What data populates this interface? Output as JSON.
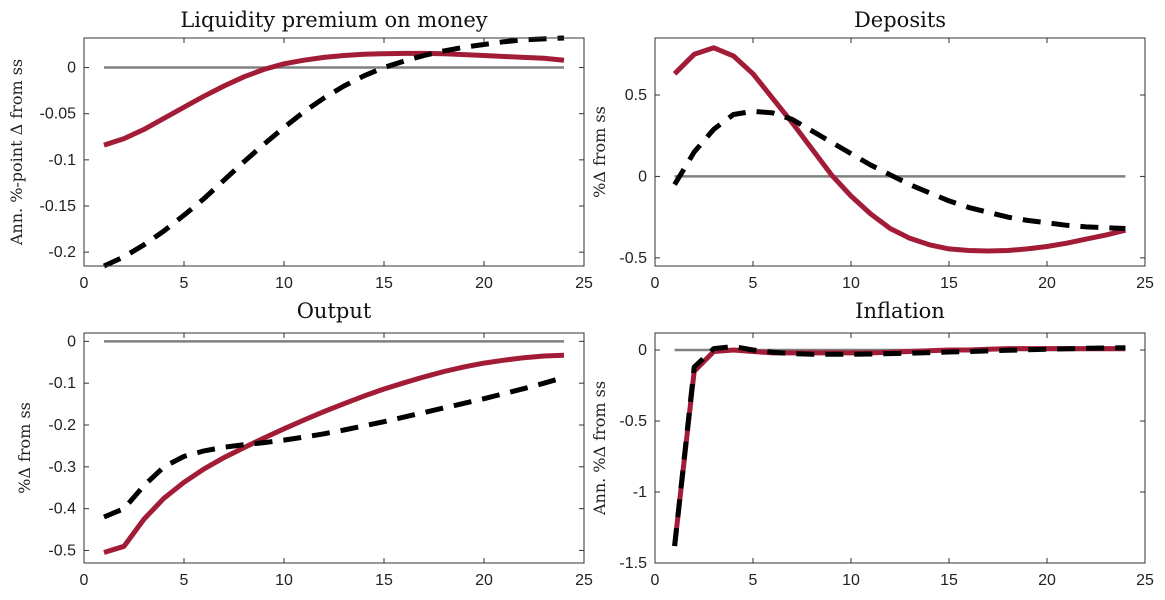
{
  "chart_data": [
    {
      "type": "line",
      "title": "Liquidity premium on money",
      "ylabel": "Ann. %-point Δ from ss",
      "xlim": [
        0,
        25
      ],
      "ylim": [
        -0.215,
        0.032
      ],
      "xticks": [
        0,
        5,
        10,
        15,
        20,
        25
      ],
      "yticks": [
        0,
        -0.05,
        -0.1,
        -0.15,
        -0.2
      ],
      "ytick_labels": [
        "0",
        "-0.05",
        "-0.1",
        "-0.15",
        "-0.2"
      ],
      "grid": false,
      "legend": "none",
      "x": [
        1,
        2,
        3,
        4,
        5,
        6,
        7,
        8,
        9,
        10,
        11,
        12,
        13,
        14,
        15,
        16,
        17,
        18,
        19,
        20,
        21,
        22,
        23,
        24
      ],
      "series": [
        {
          "style": "solid",
          "color": "#a31c37",
          "values": [
            -0.084,
            -0.077,
            -0.067,
            -0.055,
            -0.043,
            -0.031,
            -0.02,
            -0.01,
            -0.002,
            0.004,
            0.008,
            0.011,
            0.013,
            0.0145,
            0.015,
            0.0153,
            0.0153,
            0.015,
            0.014,
            0.013,
            0.012,
            0.011,
            0.01,
            0.008
          ]
        },
        {
          "style": "dashed",
          "color": "#000000",
          "values": [
            -0.215,
            -0.205,
            -0.192,
            -0.177,
            -0.16,
            -0.142,
            -0.122,
            -0.102,
            -0.083,
            -0.065,
            -0.048,
            -0.033,
            -0.02,
            -0.009,
            0.0,
            0.007,
            0.013,
            0.018,
            0.022,
            0.025,
            0.028,
            0.03,
            0.031,
            0.032
          ]
        },
        {
          "style": "zero",
          "color": "#808080",
          "values": [
            0,
            0,
            0,
            0,
            0,
            0,
            0,
            0,
            0,
            0,
            0,
            0,
            0,
            0,
            0,
            0,
            0,
            0,
            0,
            0,
            0,
            0,
            0,
            0
          ]
        }
      ]
    },
    {
      "type": "line",
      "title": "Deposits",
      "ylabel": "%Δ from ss",
      "xlim": [
        0,
        25
      ],
      "ylim": [
        -0.55,
        0.85
      ],
      "xticks": [
        0,
        5,
        10,
        15,
        20,
        25
      ],
      "yticks": [
        0.5,
        0,
        -0.5
      ],
      "ytick_labels": [
        "0.5",
        "0",
        "-0.5"
      ],
      "grid": false,
      "legend": "none",
      "x": [
        1,
        2,
        3,
        4,
        5,
        6,
        7,
        8,
        9,
        10,
        11,
        12,
        13,
        14,
        15,
        16,
        17,
        18,
        19,
        20,
        21,
        22,
        23,
        24
      ],
      "series": [
        {
          "style": "solid",
          "color": "#a31c37",
          "values": [
            0.63,
            0.75,
            0.79,
            0.74,
            0.63,
            0.48,
            0.33,
            0.17,
            0.01,
            -0.12,
            -0.23,
            -0.32,
            -0.38,
            -0.42,
            -0.445,
            -0.455,
            -0.458,
            -0.455,
            -0.445,
            -0.43,
            -0.41,
            -0.385,
            -0.36,
            -0.33
          ]
        },
        {
          "style": "dashed",
          "color": "#000000",
          "values": [
            -0.05,
            0.15,
            0.29,
            0.38,
            0.4,
            0.39,
            0.35,
            0.28,
            0.21,
            0.14,
            0.07,
            0.01,
            -0.05,
            -0.1,
            -0.15,
            -0.19,
            -0.22,
            -0.25,
            -0.27,
            -0.285,
            -0.3,
            -0.31,
            -0.315,
            -0.32
          ]
        },
        {
          "style": "zero",
          "color": "#808080",
          "values": [
            0,
            0,
            0,
            0,
            0,
            0,
            0,
            0,
            0,
            0,
            0,
            0,
            0,
            0,
            0,
            0,
            0,
            0,
            0,
            0,
            0,
            0,
            0,
            0
          ]
        }
      ]
    },
    {
      "type": "line",
      "title": "Output",
      "ylabel": "%Δ from ss",
      "xlim": [
        0,
        25
      ],
      "ylim": [
        -0.53,
        0.02
      ],
      "xticks": [
        0,
        5,
        10,
        15,
        20,
        25
      ],
      "yticks": [
        0,
        -0.1,
        -0.2,
        -0.3,
        -0.4,
        -0.5
      ],
      "ytick_labels": [
        "0",
        "-0.1",
        "-0.2",
        "-0.3",
        "-0.4",
        "-0.5"
      ],
      "grid": false,
      "legend": "none",
      "x": [
        1,
        2,
        3,
        4,
        5,
        6,
        7,
        8,
        9,
        10,
        11,
        12,
        13,
        14,
        15,
        16,
        17,
        18,
        19,
        20,
        21,
        22,
        23,
        24
      ],
      "series": [
        {
          "style": "solid",
          "color": "#a31c37",
          "values": [
            -0.505,
            -0.49,
            -0.425,
            -0.375,
            -0.337,
            -0.305,
            -0.278,
            -0.254,
            -0.231,
            -0.209,
            -0.188,
            -0.168,
            -0.149,
            -0.131,
            -0.114,
            -0.099,
            -0.085,
            -0.072,
            -0.061,
            -0.052,
            -0.045,
            -0.039,
            -0.035,
            -0.033
          ]
        },
        {
          "style": "dashed",
          "color": "#000000",
          "values": [
            -0.42,
            -0.4,
            -0.345,
            -0.3,
            -0.275,
            -0.262,
            -0.253,
            -0.247,
            -0.242,
            -0.236,
            -0.229,
            -0.221,
            -0.212,
            -0.202,
            -0.192,
            -0.181,
            -0.17,
            -0.159,
            -0.148,
            -0.137,
            -0.125,
            -0.113,
            -0.1,
            -0.086
          ]
        },
        {
          "style": "zero",
          "color": "#808080",
          "values": [
            0,
            0,
            0,
            0,
            0,
            0,
            0,
            0,
            0,
            0,
            0,
            0,
            0,
            0,
            0,
            0,
            0,
            0,
            0,
            0,
            0,
            0,
            0,
            0
          ]
        }
      ]
    },
    {
      "type": "line",
      "title": "Inflation",
      "ylabel": "Ann. %Δ from ss",
      "xlim": [
        0,
        25
      ],
      "ylim": [
        -1.5,
        0.12
      ],
      "xticks": [
        0,
        5,
        10,
        15,
        20,
        25
      ],
      "yticks": [
        0,
        -0.5,
        -1,
        -1.5
      ],
      "ytick_labels": [
        "0",
        "-0.5",
        "-1",
        "-1.5"
      ],
      "grid": false,
      "legend": "none",
      "x": [
        1,
        2,
        3,
        4,
        5,
        6,
        7,
        8,
        9,
        10,
        11,
        12,
        13,
        14,
        15,
        16,
        17,
        18,
        19,
        20,
        21,
        22,
        23,
        24
      ],
      "series": [
        {
          "style": "solid",
          "color": "#a31c37",
          "values": [
            -1.38,
            -0.15,
            -0.01,
            0.0,
            -0.01,
            -0.02,
            -0.02,
            -0.02,
            -0.02,
            -0.02,
            -0.02,
            -0.015,
            -0.01,
            -0.005,
            0.0,
            0.0,
            0.005,
            0.01,
            0.01,
            0.01,
            0.01,
            0.01,
            0.01,
            0.01
          ]
        },
        {
          "style": "dashed",
          "color": "#000000",
          "values": [
            -1.38,
            -0.12,
            0.01,
            0.025,
            0.0,
            -0.015,
            -0.025,
            -0.03,
            -0.03,
            -0.03,
            -0.028,
            -0.025,
            -0.022,
            -0.018,
            -0.014,
            -0.01,
            -0.006,
            -0.002,
            0.002,
            0.006,
            0.009,
            0.012,
            0.014,
            0.016
          ]
        },
        {
          "style": "zero",
          "color": "#808080",
          "values": [
            0,
            0,
            0,
            0,
            0,
            0,
            0,
            0,
            0,
            0,
            0,
            0,
            0,
            0,
            0,
            0,
            0,
            0,
            0,
            0,
            0,
            0,
            0,
            0
          ]
        }
      ]
    }
  ]
}
